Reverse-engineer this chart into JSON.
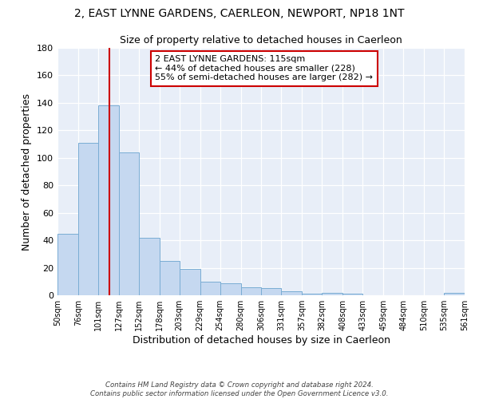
{
  "title": "2, EAST LYNNE GARDENS, CAERLEON, NEWPORT, NP18 1NT",
  "subtitle": "Size of property relative to detached houses in Caerleon",
  "xlabel": "Distribution of detached houses by size in Caerleon",
  "ylabel": "Number of detached properties",
  "bar_edges": [
    50,
    76,
    101,
    127,
    152,
    178,
    203,
    229,
    254,
    280,
    306,
    331,
    357,
    382,
    408,
    433,
    459,
    484,
    510,
    535,
    561
  ],
  "bar_heights": [
    45,
    111,
    138,
    104,
    42,
    25,
    19,
    10,
    9,
    6,
    5,
    3,
    1,
    2,
    1,
    0,
    0,
    0,
    0,
    2
  ],
  "bar_color": "#c5d8f0",
  "bar_edge_color": "#7aadd4",
  "vline_x": 115,
  "vline_color": "#cc0000",
  "ylim": [
    0,
    180
  ],
  "yticks": [
    0,
    20,
    40,
    60,
    80,
    100,
    120,
    140,
    160,
    180
  ],
  "annotation_title": "2 EAST LYNNE GARDENS: 115sqm",
  "annotation_line1": "← 44% of detached houses are smaller (228)",
  "annotation_line2": "55% of semi-detached houses are larger (282) →",
  "annotation_box_color": "#ffffff",
  "annotation_box_edge_color": "#cc0000",
  "bg_color": "#e8eef8",
  "footnote1": "Contains HM Land Registry data © Crown copyright and database right 2024.",
  "footnote2": "Contains public sector information licensed under the Open Government Licence v3.0.",
  "title_fontsize": 10,
  "subtitle_fontsize": 9
}
